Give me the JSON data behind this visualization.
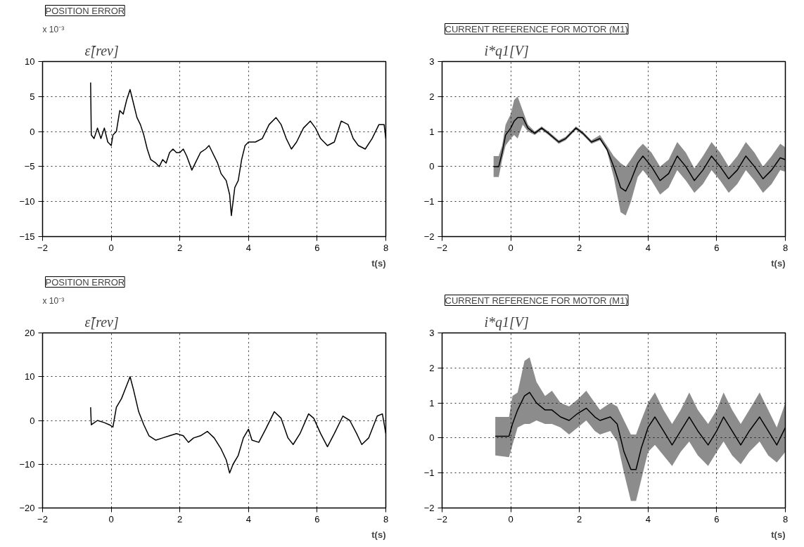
{
  "chart_data": [
    {
      "type": "line",
      "title": "POSITION ERROR",
      "ylabel": "ε̃[rev]",
      "xlabel": "t(s)",
      "annotations": [
        "x 10⁻³"
      ],
      "xlim": [
        -2,
        8
      ],
      "ylim": [
        -15,
        10
      ],
      "xticks": [
        -2,
        0,
        2,
        4,
        6,
        8
      ],
      "yticks": [
        -15,
        -10,
        -5,
        0,
        5,
        10
      ],
      "grid": true,
      "series": [
        {
          "color": "#000000",
          "x": [
            -0.6,
            -0.58,
            -0.5,
            -0.4,
            -0.3,
            -0.2,
            -0.1,
            0,
            0.05,
            0.15,
            0.25,
            0.35,
            0.45,
            0.55,
            0.65,
            0.75,
            0.85,
            0.95,
            1.05,
            1.15,
            1.3,
            1.4,
            1.5,
            1.6,
            1.7,
            1.8,
            1.9,
            2.0,
            2.1,
            2.2,
            2.35,
            2.45,
            2.6,
            2.75,
            2.85,
            2.95,
            3.1,
            3.2,
            3.35,
            3.45,
            3.5,
            3.55,
            3.6,
            3.7,
            3.8,
            3.9,
            4.0,
            4.2,
            4.4,
            4.6,
            4.8,
            4.95,
            5.1,
            5.25,
            5.4,
            5.6,
            5.8,
            5.95,
            6.1,
            6.3,
            6.5,
            6.7,
            6.9,
            7.05,
            7.2,
            7.4,
            7.6,
            7.8,
            7.95,
            8
          ],
          "values": [
            7,
            -0.5,
            -1,
            0.5,
            -1,
            0.5,
            -1.5,
            -2,
            -0.5,
            0,
            3,
            2.5,
            4.5,
            6,
            4,
            2,
            1,
            -0.5,
            -2.5,
            -4,
            -4.5,
            -5,
            -4,
            -4.5,
            -3,
            -2.5,
            -3,
            -3,
            -2.5,
            -3.5,
            -5.5,
            -4.5,
            -3,
            -2.5,
            -2,
            -3,
            -4.5,
            -6,
            -7,
            -9,
            -12,
            -10,
            -8,
            -7,
            -4,
            -2,
            -1.5,
            -1.5,
            -1,
            1,
            2,
            1,
            -1,
            -2.5,
            -1.5,
            0.5,
            1.5,
            0.5,
            -1,
            -2,
            -1.5,
            1.5,
            1,
            -1,
            -2,
            -2.5,
            -1,
            1,
            1,
            -1
          ]
        }
      ]
    },
    {
      "type": "line",
      "title": "CURRENT REFERENCE FOR MOTOR (M1)",
      "ylabel": "i*q1[V]",
      "xlabel": "t(s)",
      "xlim": [
        -2,
        8
      ],
      "ylim": [
        -2,
        3
      ],
      "xticks": [
        -2,
        0,
        2,
        4,
        6,
        8
      ],
      "yticks": [
        -2,
        -1,
        0,
        1,
        2,
        3
      ],
      "grid": true,
      "series": [
        {
          "color": "#000000",
          "x": [
            -0.5,
            -0.35,
            -0.25,
            -0.15,
            0,
            0.1,
            0.2,
            0.35,
            0.5,
            0.7,
            0.9,
            1.1,
            1.4,
            1.6,
            1.9,
            2.1,
            2.35,
            2.6,
            2.8,
            3.0,
            3.2,
            3.35,
            3.5,
            3.7,
            3.85,
            4.1,
            4.35,
            4.6,
            4.85,
            5.1,
            5.35,
            5.6,
            5.85,
            6.1,
            6.35,
            6.6,
            6.85,
            7.1,
            7.35,
            7.6,
            7.85,
            8.0
          ],
          "values": [
            0,
            0,
            0.4,
            0.9,
            1.1,
            1.3,
            1.4,
            1.4,
            1.1,
            0.95,
            1.1,
            0.95,
            0.7,
            0.8,
            1.1,
            0.95,
            0.7,
            0.8,
            0.5,
            0,
            -0.6,
            -0.7,
            -0.4,
            0.1,
            0.3,
            0.0,
            -0.4,
            -0.2,
            0.3,
            0.0,
            -0.4,
            -0.1,
            0.3,
            0.0,
            -0.35,
            -0.1,
            0.3,
            0.0,
            -0.35,
            -0.1,
            0.25,
            0.2
          ],
          "lower": [
            -0.3,
            -0.3,
            0.2,
            0.6,
            0.8,
            0.9,
            0.8,
            1.2,
            1.0,
            0.9,
            1.05,
            0.9,
            0.65,
            0.75,
            1.05,
            0.9,
            0.65,
            0.75,
            0.45,
            -0.3,
            -1.3,
            -1.4,
            -1.0,
            -0.3,
            -0.1,
            -0.4,
            -0.8,
            -0.6,
            -0.1,
            -0.4,
            -0.75,
            -0.5,
            -0.1,
            -0.4,
            -0.75,
            -0.5,
            -0.1,
            -0.4,
            -0.75,
            -0.5,
            -0.1,
            -0.15
          ],
          "upper": [
            0.3,
            0.3,
            0.6,
            1.2,
            1.5,
            1.9,
            2.0,
            1.6,
            1.2,
            1.0,
            1.15,
            1.0,
            0.75,
            0.85,
            1.15,
            1.0,
            0.75,
            0.9,
            0.6,
            0.3,
            0.1,
            0.0,
            0.2,
            0.5,
            0.65,
            0.4,
            0.0,
            0.2,
            0.7,
            0.4,
            -0.05,
            0.3,
            0.7,
            0.4,
            0.0,
            0.3,
            0.7,
            0.4,
            0.0,
            0.3,
            0.65,
            0.55
          ]
        }
      ]
    },
    {
      "type": "line",
      "title": "POSITION ERROR",
      "ylabel": "ε̃[rev]",
      "xlabel": "t(s)",
      "annotations": [
        "x 10⁻³"
      ],
      "xlim": [
        -2,
        8
      ],
      "ylim": [
        -20,
        20
      ],
      "xticks": [
        -2,
        0,
        2,
        4,
        6,
        8
      ],
      "yticks": [
        -20,
        -10,
        0,
        10,
        20
      ],
      "grid": true,
      "series": [
        {
          "color": "#000000",
          "x": [
            -0.6,
            -0.58,
            -0.4,
            -0.2,
            -0.05,
            0.05,
            0.15,
            0.3,
            0.45,
            0.55,
            0.65,
            0.8,
            0.95,
            1.1,
            1.3,
            1.5,
            1.7,
            1.9,
            2.1,
            2.25,
            2.4,
            2.6,
            2.8,
            3.0,
            3.2,
            3.35,
            3.45,
            3.55,
            3.7,
            3.85,
            4.0,
            4.1,
            4.3,
            4.5,
            4.75,
            4.95,
            5.15,
            5.3,
            5.5,
            5.75,
            5.9,
            6.1,
            6.3,
            6.5,
            6.75,
            6.95,
            7.15,
            7.3,
            7.5,
            7.75,
            7.9,
            8
          ],
          "values": [
            3,
            -1,
            0,
            -0.5,
            -1,
            -1.5,
            3,
            5,
            8,
            10,
            7,
            2,
            -1,
            -3.5,
            -4.5,
            -4,
            -3.5,
            -3,
            -3.5,
            -5,
            -4,
            -3.5,
            -2.5,
            -4,
            -6.5,
            -9,
            -12,
            -10,
            -8,
            -4,
            -2,
            -4.5,
            -5,
            -2,
            2,
            0.5,
            -4,
            -5.5,
            -3,
            1.5,
            0.5,
            -3,
            -6,
            -3,
            1,
            0,
            -3,
            -5.5,
            -4,
            1,
            1.5,
            -3
          ]
        }
      ]
    },
    {
      "type": "line",
      "title": "CURRENT REFERENCE FOR MOTOR (M1)",
      "ylabel": "i*q1[V]",
      "xlabel": "t(s)",
      "xlim": [
        -2,
        8
      ],
      "ylim": [
        -2,
        3
      ],
      "xticks": [
        -2,
        0,
        2,
        4,
        6,
        8
      ],
      "yticks": [
        -2,
        -1,
        0,
        1,
        2,
        3
      ],
      "grid": true,
      "series": [
        {
          "color": "#000000",
          "x": [
            -0.45,
            -0.05,
            0.05,
            0.2,
            0.4,
            0.55,
            0.75,
            1.0,
            1.2,
            1.45,
            1.7,
            1.95,
            2.2,
            2.45,
            2.6,
            2.9,
            3.1,
            3.3,
            3.5,
            3.65,
            3.8,
            4.0,
            4.2,
            4.45,
            4.7,
            4.95,
            5.2,
            5.45,
            5.75,
            6.0,
            6.2,
            6.45,
            6.7,
            6.95,
            7.25,
            7.5,
            7.75,
            8.0
          ],
          "values": [
            0.05,
            0.05,
            0.4,
            0.8,
            1.2,
            1.3,
            1.0,
            0.8,
            0.8,
            0.6,
            0.5,
            0.7,
            0.85,
            0.6,
            0.5,
            0.6,
            0.4,
            -0.4,
            -0.9,
            -0.9,
            -0.3,
            0.3,
            0.6,
            0.2,
            -0.2,
            0.2,
            0.6,
            0.2,
            -0.2,
            0.2,
            0.6,
            0.2,
            -0.2,
            0.2,
            0.6,
            0.2,
            -0.2,
            0.3
          ],
          "lower": [
            -0.5,
            -0.55,
            -0.2,
            0.3,
            0.4,
            0.4,
            0.5,
            0.4,
            0.4,
            0.3,
            0.1,
            0.3,
            0.5,
            0.2,
            0.1,
            0.2,
            -0.1,
            -1.0,
            -1.8,
            -1.8,
            -1.2,
            -0.4,
            -0.2,
            -0.5,
            -0.8,
            -0.4,
            -0.1,
            -0.5,
            -0.8,
            -0.4,
            -0.1,
            -0.5,
            -0.75,
            -0.4,
            -0.1,
            -0.5,
            -0.7,
            -0.4
          ],
          "upper": [
            0.6,
            0.6,
            1.2,
            1.3,
            2.2,
            2.3,
            1.6,
            1.2,
            1.35,
            1.0,
            0.9,
            1.1,
            1.35,
            1.0,
            0.8,
            1.0,
            0.9,
            0.5,
            0.1,
            0.1,
            0.5,
            1.0,
            1.3,
            0.8,
            0.4,
            0.8,
            1.3,
            0.8,
            0.4,
            0.8,
            1.3,
            0.8,
            0.4,
            0.8,
            1.3,
            0.8,
            0.3,
            1.0
          ]
        }
      ]
    }
  ]
}
